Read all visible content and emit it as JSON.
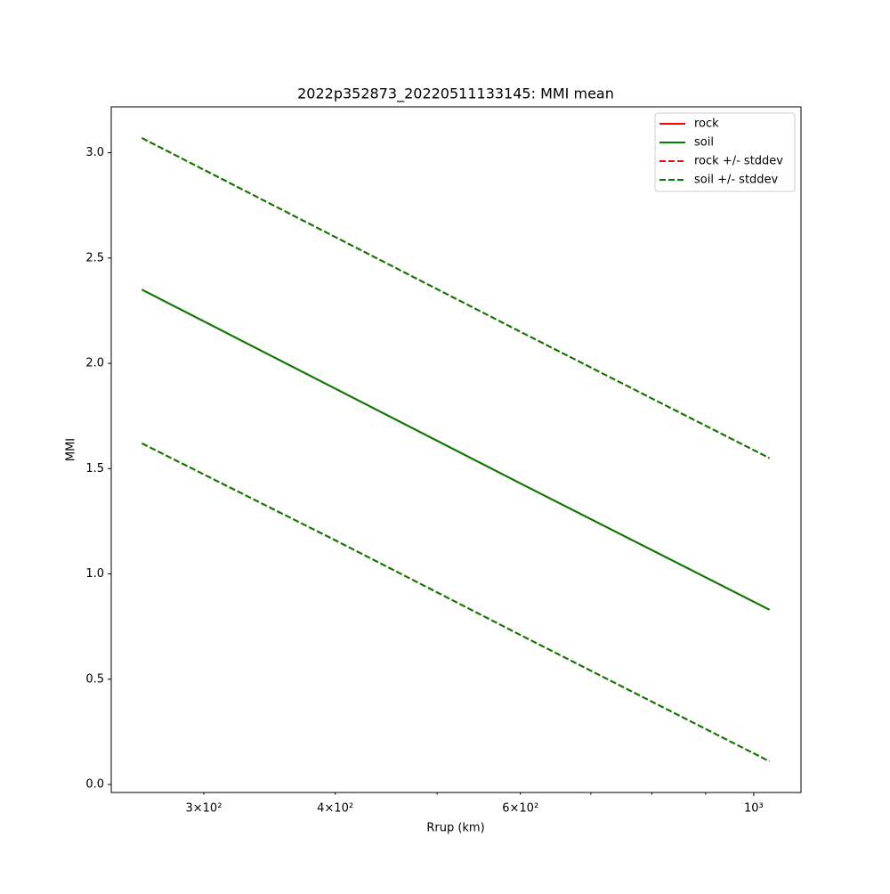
{
  "chart_data": {
    "type": "line",
    "title": "2022p352873_20220511133145: MMI mean",
    "xlabel": "Rrup (km)",
    "ylabel": "MMI",
    "xscale": "log",
    "x": [
      262,
      400,
      600,
      1035
    ],
    "series": [
      {
        "name": "rock",
        "color": "#ff0000",
        "linestyle": "solid",
        "values": [
          2.35,
          1.88,
          1.43,
          0.83
        ]
      },
      {
        "name": "soil",
        "color": "#008000",
        "linestyle": "solid",
        "values": [
          2.35,
          1.88,
          1.43,
          0.83
        ]
      },
      {
        "name": "rock +/- stddev",
        "color": "#ff0000",
        "linestyle": "dashed",
        "upper": [
          3.07,
          2.6,
          2.15,
          1.55
        ],
        "lower": [
          1.62,
          1.16,
          0.71,
          0.11
        ]
      },
      {
        "name": "soil +/- stddev",
        "color": "#008000",
        "linestyle": "dashed",
        "upper": [
          3.07,
          2.6,
          2.15,
          1.55
        ],
        "lower": [
          1.62,
          1.16,
          0.71,
          0.11
        ]
      }
    ],
    "xlim": [
      245,
      1109
    ],
    "xticks": [
      {
        "value": 300,
        "label": "3×10²"
      },
      {
        "value": 400,
        "label": "4×10²"
      },
      {
        "value": 600,
        "label": "6×10²"
      },
      {
        "value": 1000,
        "label": "10³"
      }
    ],
    "xminorticks": [
      500,
      700,
      800,
      900
    ],
    "ylim": [
      -0.038,
      3.218
    ],
    "yticks": [
      {
        "value": 0,
        "label": "0.0"
      },
      0.5,
      {
        "value": 1,
        "label": "1.0"
      },
      1.5,
      {
        "value": 2,
        "label": "2.0"
      },
      2.5,
      {
        "value": 3,
        "label": "3.0"
      }
    ],
    "legend": "upper right",
    "grid": false
  }
}
